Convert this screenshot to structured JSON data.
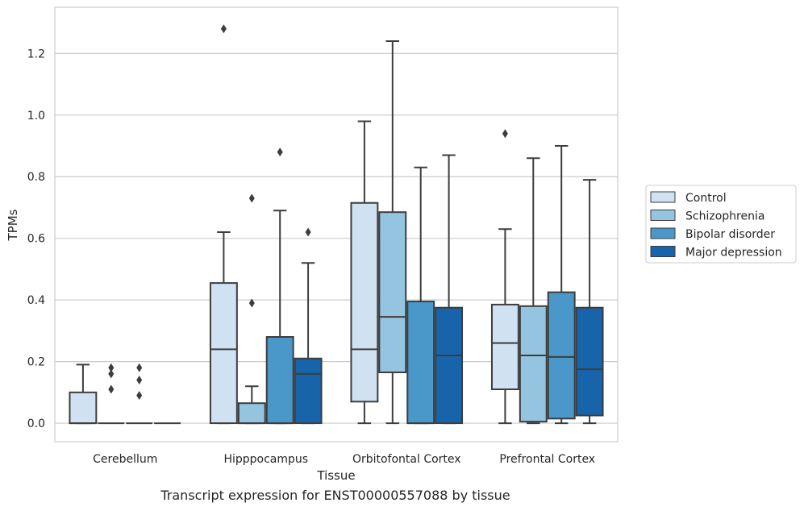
{
  "caption": "Transcript expression for ENST00000557088 by tissue",
  "chart_data": {
    "type": "box",
    "xlabel": "Tissue",
    "ylabel": "TPMs",
    "ylim": [
      -0.06,
      1.35
    ],
    "yticks": [
      0.0,
      0.2,
      0.4,
      0.6,
      0.8,
      1.0,
      1.2
    ],
    "ytick_labels": [
      "0.0",
      "0.2",
      "0.4",
      "0.6",
      "0.8",
      "1.0",
      "1.2"
    ],
    "grid": "horizontal",
    "legend_position": "right",
    "categories": [
      "Cerebellum",
      "Hipppocampus",
      "Orbitofontal Cortex",
      "Prefrontal Cortex"
    ],
    "series": [
      {
        "name": "Control",
        "color": "#d0e1f2",
        "boxes": [
          {
            "min": 0.0,
            "q1": 0.0,
            "median": 0.0,
            "q3": 0.1,
            "max": 0.19,
            "outliers": []
          },
          {
            "min": 0.0,
            "q1": 0.0,
            "median": 0.24,
            "q3": 0.455,
            "max": 0.62,
            "outliers": [
              1.28
            ]
          },
          {
            "min": 0.0,
            "q1": 0.07,
            "median": 0.24,
            "q3": 0.715,
            "max": 0.98,
            "outliers": []
          },
          {
            "min": 0.0,
            "q1": 0.11,
            "median": 0.26,
            "q3": 0.385,
            "max": 0.63,
            "outliers": [
              0.94
            ]
          }
        ]
      },
      {
        "name": "Schizophrenia",
        "color": "#94c4df",
        "boxes": [
          {
            "min": 0.0,
            "q1": 0.0,
            "median": 0.0,
            "q3": 0.0,
            "max": 0.0,
            "outliers": [
              0.11,
              0.16,
              0.18
            ]
          },
          {
            "min": 0.0,
            "q1": 0.0,
            "median": 0.0,
            "q3": 0.065,
            "max": 0.12,
            "outliers": [
              0.39,
              0.73
            ]
          },
          {
            "min": 0.0,
            "q1": 0.165,
            "median": 0.345,
            "q3": 0.685,
            "max": 1.24,
            "outliers": []
          },
          {
            "min": 0.0,
            "q1": 0.005,
            "median": 0.22,
            "q3": 0.38,
            "max": 0.86,
            "outliers": []
          }
        ]
      },
      {
        "name": "Bipolar disorder",
        "color": "#4a98c9",
        "boxes": [
          {
            "min": 0.0,
            "q1": 0.0,
            "median": 0.0,
            "q3": 0.0,
            "max": 0.0,
            "outliers": [
              0.09,
              0.14,
              0.18
            ]
          },
          {
            "min": 0.0,
            "q1": 0.0,
            "median": 0.0,
            "q3": 0.28,
            "max": 0.69,
            "outliers": [
              0.88
            ]
          },
          {
            "min": 0.0,
            "q1": 0.0,
            "median": 0.0,
            "q3": 0.395,
            "max": 0.83,
            "outliers": []
          },
          {
            "min": 0.0,
            "q1": 0.015,
            "median": 0.215,
            "q3": 0.425,
            "max": 0.9,
            "outliers": []
          }
        ]
      },
      {
        "name": "Major depression",
        "color": "#1764ab",
        "boxes": [
          {
            "min": 0.0,
            "q1": 0.0,
            "median": 0.0,
            "q3": 0.0,
            "max": 0.0,
            "outliers": []
          },
          {
            "min": 0.0,
            "q1": 0.0,
            "median": 0.16,
            "q3": 0.21,
            "max": 0.52,
            "outliers": [
              0.62
            ]
          },
          {
            "min": 0.0,
            "q1": 0.0,
            "median": 0.22,
            "q3": 0.375,
            "max": 0.87,
            "outliers": []
          },
          {
            "min": 0.0,
            "q1": 0.025,
            "median": 0.175,
            "q3": 0.375,
            "max": 0.79,
            "outliers": []
          }
        ]
      }
    ]
  }
}
